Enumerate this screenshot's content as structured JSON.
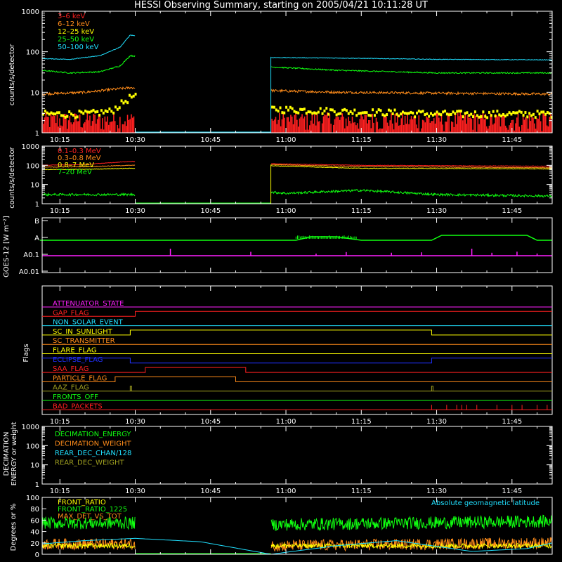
{
  "title": "HESSI Observing Summary, starting on 2005/04/21 10:11:28 UT",
  "time_ticks": [
    "10:15",
    "10:30",
    "10:45",
    "11:00",
    "11:15",
    "11:30",
    "11:45"
  ],
  "colors": {
    "red": "#ff2020",
    "orange": "#ff8c1a",
    "yellow": "#ffff00",
    "green": "#10ff10",
    "cyan": "#20e0ff",
    "magenta": "#ff20ff",
    "blue": "#2030ff",
    "olive": "#a0a020",
    "white": "#ffffff"
  },
  "chart_data": [
    {
      "id": "lo-rates",
      "type": "line",
      "ylabel": "counts/s/detector",
      "yscale": "log",
      "ylim": [
        1,
        1000
      ],
      "y_ticks": [
        "1",
        "10",
        "100",
        "1000"
      ],
      "xlim": [
        "10:11:28",
        "11:53:00"
      ],
      "data_gap": [
        "10:30",
        "10:57"
      ],
      "series": [
        {
          "name": "3–6 keV",
          "color": "#ff2020",
          "x": [
            "10:11",
            "10:20",
            "10:29",
            "10:57",
            "11:10",
            "11:30",
            "11:53"
          ],
          "y": [
            2,
            2,
            2,
            2,
            2,
            2,
            2
          ]
        },
        {
          "name": "6–12 keV",
          "color": "#ff8c1a",
          "x": [
            "10:11",
            "10:20",
            "10:29",
            "10:57",
            "11:10",
            "11:30",
            "11:53"
          ],
          "y": [
            9,
            10,
            13,
            11,
            10,
            9.5,
            9
          ]
        },
        {
          "name": "12–25 keV",
          "color": "#ffff00",
          "x": [
            "10:11",
            "10:20",
            "10:25",
            "10:29",
            "10:57",
            "11:10",
            "11:30",
            "11:53"
          ],
          "y": [
            3,
            3,
            3.5,
            8,
            4,
            3.5,
            3,
            3
          ]
        },
        {
          "name": "25–50 keV",
          "color": "#10ff10",
          "x": [
            "10:11",
            "10:17",
            "10:23",
            "10:27",
            "10:29",
            "10:57",
            "11:10",
            "11:30",
            "11:53"
          ],
          "y": [
            35,
            30,
            32,
            45,
            80,
            42,
            35,
            30,
            30
          ]
        },
        {
          "name": "50–100 keV",
          "color": "#20e0ff",
          "x": [
            "10:11",
            "10:17",
            "10:23",
            "10:27",
            "10:29",
            "10:57",
            "11:10",
            "11:30",
            "11:53"
          ],
          "y": [
            68,
            65,
            80,
            130,
            260,
            72,
            70,
            65,
            63
          ]
        }
      ]
    },
    {
      "id": "hi-rates",
      "type": "line",
      "ylabel": "counts/s/detector",
      "yscale": "log",
      "ylim": [
        1,
        1000
      ],
      "y_ticks": [
        "1",
        "10",
        "100",
        "1000"
      ],
      "xlim": [
        "10:11:28",
        "11:53:00"
      ],
      "data_gap": [
        "10:30",
        "10:57"
      ],
      "series": [
        {
          "name": "0.1–0.3 MeV",
          "color": "#ff2020",
          "x": [
            "10:11",
            "10:20",
            "10:29",
            "10:57",
            "11:15",
            "11:53"
          ],
          "y": [
            100,
            110,
            160,
            120,
            100,
            90
          ]
        },
        {
          "name": "0.3–0.8 MeV",
          "color": "#ff8c1a",
          "x": [
            "10:11",
            "10:20",
            "10:29",
            "10:57",
            "11:15",
            "11:53"
          ],
          "y": [
            80,
            85,
            100,
            110,
            85,
            75
          ]
        },
        {
          "name": "0.8–7 MeV",
          "color": "#ffff00",
          "x": [
            "10:11",
            "10:20",
            "10:29",
            "10:57",
            "11:15",
            "11:53"
          ],
          "y": [
            60,
            62,
            70,
            95,
            70,
            65
          ]
        },
        {
          "name": "7–20 MeV",
          "color": "#10ff10",
          "x": [
            "10:11",
            "10:20",
            "10:29",
            "10:57",
            "11:00",
            "11:15",
            "11:30",
            "11:53"
          ],
          "y": [
            3,
            3,
            3,
            4,
            3.5,
            5,
            3,
            2.5
          ]
        }
      ]
    },
    {
      "id": "goes",
      "type": "line",
      "ylabel": "GOES-12 [W m⁻²]",
      "yscale": "log",
      "y_ticks": [
        "B",
        "A",
        "A0.1",
        "A0.01"
      ],
      "xlim": [
        "10:11:28",
        "11:53:00"
      ],
      "series": [
        {
          "color": "#10ff10",
          "x": [
            "10:11",
            "11:02",
            "11:05",
            "11:10",
            "11:15",
            "11:29",
            "11:31",
            "11:48",
            "11:50",
            "11:53"
          ],
          "y": [
            "A",
            "A",
            "A+",
            "A+",
            "A",
            "A",
            "B-",
            "B-",
            "A",
            "A"
          ]
        },
        {
          "color": "#ff20ff",
          "x": [
            "10:11",
            "11:53"
          ],
          "y": [
            "A0.1",
            "A0.1"
          ]
        }
      ]
    },
    {
      "id": "flags",
      "type": "line",
      "ylabel": "Flags",
      "xlim": [
        "10:11:28",
        "11:53:00"
      ],
      "series": [
        {
          "name": "ATTENUATOR_STATE",
          "color": "#ff20ff",
          "on": []
        },
        {
          "name": "GAP_FLAG",
          "color": "#ff2020",
          "on": [
            [
              "10:30",
              "11:53"
            ]
          ]
        },
        {
          "name": "NON_SOLAR_EVENT",
          "color": "#20e0ff",
          "on": []
        },
        {
          "name": "SC_IN_SUNLIGHT",
          "color": "#ffff00",
          "on": [
            [
              "10:29",
              "11:29"
            ]
          ]
        },
        {
          "name": "SC_TRANSMITTER",
          "color": "#ff8c1a",
          "on": []
        },
        {
          "name": "FLARE_FLAG",
          "color": "#ffff00",
          "on": []
        },
        {
          "name": "ECLIPSE_FLAG",
          "color": "#2030ff",
          "on": [
            [
              "10:11",
              "10:29"
            ],
            [
              "11:29",
              "11:53"
            ]
          ]
        },
        {
          "name": "SAA_FLAG",
          "color": "#ff2020",
          "on": [
            [
              "10:32",
              "10:52"
            ]
          ]
        },
        {
          "name": "PARTICLE_FLAG",
          "color": "#ff8c1a",
          "on": [
            [
              "10:26",
              "10:50"
            ]
          ]
        },
        {
          "name": "AAZ_FLAG",
          "color": "#a0a020",
          "on": [
            [
              "10:29",
              "10:29"
            ],
            [
              "11:29",
              "11:29"
            ]
          ]
        },
        {
          "name": "FRONTS_OFF",
          "color": "#10ff10",
          "on": []
        },
        {
          "name": "BAD_PACKETS",
          "color": "#ff2020",
          "on": [
            [
              "11:29",
              "11:53"
            ]
          ]
        }
      ]
    },
    {
      "id": "decimation",
      "type": "line",
      "ylabel": "DECIMATION ENERGY or weight",
      "yscale": "log",
      "ylim": [
        1,
        1000
      ],
      "y_ticks": [
        "1",
        "10",
        "100",
        "1000"
      ],
      "xlim": [
        "10:11:28",
        "11:53:00"
      ],
      "series": [
        {
          "name": "DECIMATION_ENERGY",
          "color": "#10ff10"
        },
        {
          "name": "DECIMATION_WEIGHT",
          "color": "#ff8c1a"
        },
        {
          "name": "REAR_DEC_CHAN/128",
          "color": "#20e0ff"
        },
        {
          "name": "REAR_DEC_WEIGHT",
          "color": "#a0a020"
        }
      ]
    },
    {
      "id": "ratio",
      "type": "line",
      "ylabel": "Degrees or %",
      "ylim": [
        0,
        100
      ],
      "y_ticks": [
        "0",
        "20",
        "40",
        "60",
        "80",
        "100"
      ],
      "xlim": [
        "10:11:28",
        "11:53:00"
      ],
      "data_gap": [
        "10:30",
        "10:57"
      ],
      "annotation": "Absolute geomagnetic latitude",
      "series": [
        {
          "name": "FRONT_RATIO",
          "color": "#ffff00",
          "x": [
            "10:11",
            "10:29",
            "10:57",
            "11:53"
          ],
          "y": [
            15,
            15,
            15,
            15
          ]
        },
        {
          "name": "FRONT_RATIO_1225",
          "color": "#10ff10",
          "x": [
            "10:11",
            "10:29",
            "10:57",
            "11:53"
          ],
          "y": [
            55,
            55,
            52,
            58
          ]
        },
        {
          "name": "MAX_DET_VS_TOT",
          "color": "#ff8c1a",
          "x": [
            "10:11",
            "10:29",
            "10:57",
            "11:53"
          ],
          "y": [
            18,
            18,
            15,
            20
          ]
        },
        {
          "name": "Absolute geomagnetic latitude",
          "color": "#20e0ff",
          "x": [
            "10:11",
            "10:20",
            "10:30",
            "10:43",
            "10:57",
            "11:10",
            "11:22",
            "11:37",
            "11:48",
            "11:53"
          ],
          "y": [
            18,
            24,
            28,
            22,
            0,
            15,
            24,
            5,
            10,
            20
          ]
        }
      ]
    }
  ]
}
